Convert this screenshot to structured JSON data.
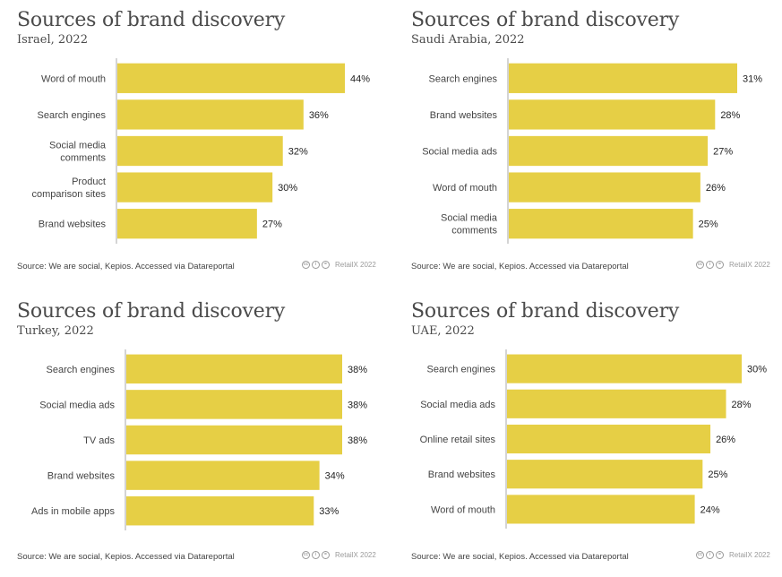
{
  "colors": {
    "bar": "#e6cf45",
    "axis": "#aaaaaa",
    "label": "#444444",
    "value": "#222222"
  },
  "footer": {
    "source": "Source: We are social, Kepios. Accessed via Datareportal",
    "credit": "RetailX 2022",
    "license_icons": [
      "cc-icon",
      "by-icon",
      "nd-icon"
    ]
  },
  "chart_data": [
    {
      "type": "bar",
      "orientation": "horizontal",
      "title": "Sources of brand discovery",
      "subtitle": "Israel, 2022",
      "categories": [
        "Word of mouth",
        "Search engines",
        "Social media comments",
        "Product comparison sites",
        "Brand websites"
      ],
      "category_lines": [
        [
          "Word of mouth"
        ],
        [
          "Search engines"
        ],
        [
          "Social media",
          "comments"
        ],
        [
          "Product",
          "comparison sites"
        ],
        [
          "Brand websites"
        ]
      ],
      "values": [
        44,
        36,
        32,
        30,
        27
      ],
      "value_labels": [
        "44%",
        "36%",
        "32%",
        "30%",
        "27%"
      ],
      "unit": "%",
      "xlim": [
        0,
        44
      ]
    },
    {
      "type": "bar",
      "orientation": "horizontal",
      "title": "Sources of brand discovery",
      "subtitle": "Saudi Arabia, 2022",
      "categories": [
        "Search engines",
        "Brand websites",
        "Social media ads",
        "Word of mouth",
        "Social media comments"
      ],
      "category_lines": [
        [
          "Search engines"
        ],
        [
          "Brand websites"
        ],
        [
          "Social media ads"
        ],
        [
          "Word of mouth"
        ],
        [
          "Social media",
          "comments"
        ]
      ],
      "values": [
        31,
        28,
        27,
        26,
        25
      ],
      "value_labels": [
        "31%",
        "28%",
        "27%",
        "26%",
        "25%"
      ],
      "unit": "%",
      "xlim": [
        0,
        31
      ]
    },
    {
      "type": "bar",
      "orientation": "horizontal",
      "title": "Sources of brand discovery",
      "subtitle": "Turkey, 2022",
      "categories": [
        "Search engines",
        "Social media ads",
        "TV ads",
        "Brand websites",
        "Ads in mobile apps"
      ],
      "category_lines": [
        [
          "Search engines"
        ],
        [
          "Social media ads"
        ],
        [
          "TV ads"
        ],
        [
          "Brand websites"
        ],
        [
          "Ads in mobile apps"
        ]
      ],
      "values": [
        38,
        38,
        38,
        34,
        33
      ],
      "value_labels": [
        "38%",
        "38%",
        "38%",
        "34%",
        "33%"
      ],
      "unit": "%",
      "xlim": [
        0,
        38
      ]
    },
    {
      "type": "bar",
      "orientation": "horizontal",
      "title": "Sources of brand discovery",
      "subtitle": "UAE, 2022",
      "categories": [
        "Search engines",
        "Social media ads",
        "Online retail sites",
        "Brand websites",
        "Word of mouth"
      ],
      "category_lines": [
        [
          "Search engines"
        ],
        [
          "Social media ads"
        ],
        [
          "Online retail sites"
        ],
        [
          "Brand websites"
        ],
        [
          "Word of mouth"
        ]
      ],
      "values": [
        30,
        28,
        26,
        25,
        24
      ],
      "value_labels": [
        "30%",
        "28%",
        "26%",
        "25%",
        "24%"
      ],
      "unit": "%",
      "xlim": [
        0,
        30
      ]
    }
  ]
}
